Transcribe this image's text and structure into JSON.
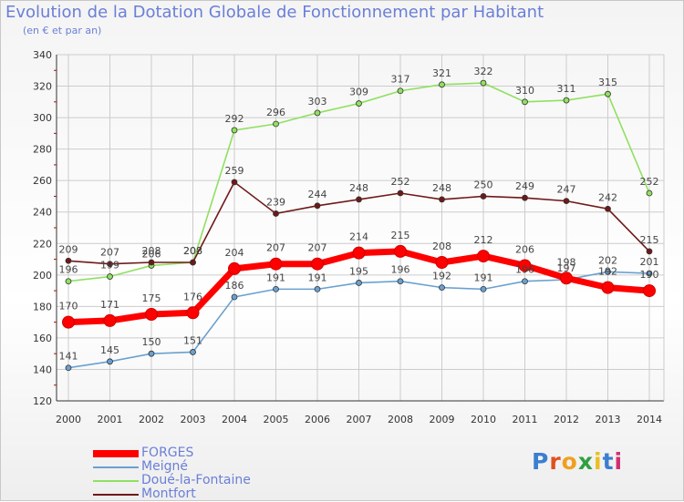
{
  "title": "Evolution de la Dotation Globale de Fonctionnement par Habitant",
  "subtitle": "(en € et par an)",
  "logo": {
    "text": "Proxiti",
    "colors": [
      "#3a7fd0",
      "#e05020",
      "#f0a020",
      "#30a040",
      "#e8c020",
      "#3a7fd0",
      "#d03070"
    ]
  },
  "chart_data": {
    "type": "line",
    "x": [
      "2000",
      "2001",
      "2002",
      "2003",
      "2004",
      "2005",
      "2006",
      "2007",
      "2008",
      "2009",
      "2010",
      "2011",
      "2012",
      "2013",
      "2014"
    ],
    "ylim": [
      120,
      340
    ],
    "yticks": [
      120,
      140,
      160,
      180,
      200,
      220,
      240,
      260,
      280,
      300,
      320,
      340
    ],
    "grid": true,
    "legend_position": "bottom-left",
    "series": [
      {
        "name": "FORGES",
        "color": "#ff0000",
        "values": [
          170,
          171,
          175,
          176,
          204,
          207,
          207,
          214,
          215,
          208,
          212,
          206,
          198,
          192,
          190
        ]
      },
      {
        "name": "Meigné",
        "color": "#6aa0d0",
        "values": [
          141,
          145,
          150,
          151,
          186,
          191,
          191,
          195,
          196,
          192,
          191,
          196,
          197,
          202,
          201
        ]
      },
      {
        "name": "Doué-la-Fontaine",
        "color": "#90e060",
        "values": [
          196,
          199,
          206,
          208,
          292,
          296,
          303,
          309,
          317,
          321,
          322,
          310,
          311,
          315,
          252
        ]
      },
      {
        "name": "Montfort",
        "color": "#701818",
        "values": [
          209,
          207,
          208,
          208,
          259,
          239,
          244,
          248,
          252,
          248,
          250,
          249,
          247,
          242,
          215
        ]
      }
    ]
  }
}
